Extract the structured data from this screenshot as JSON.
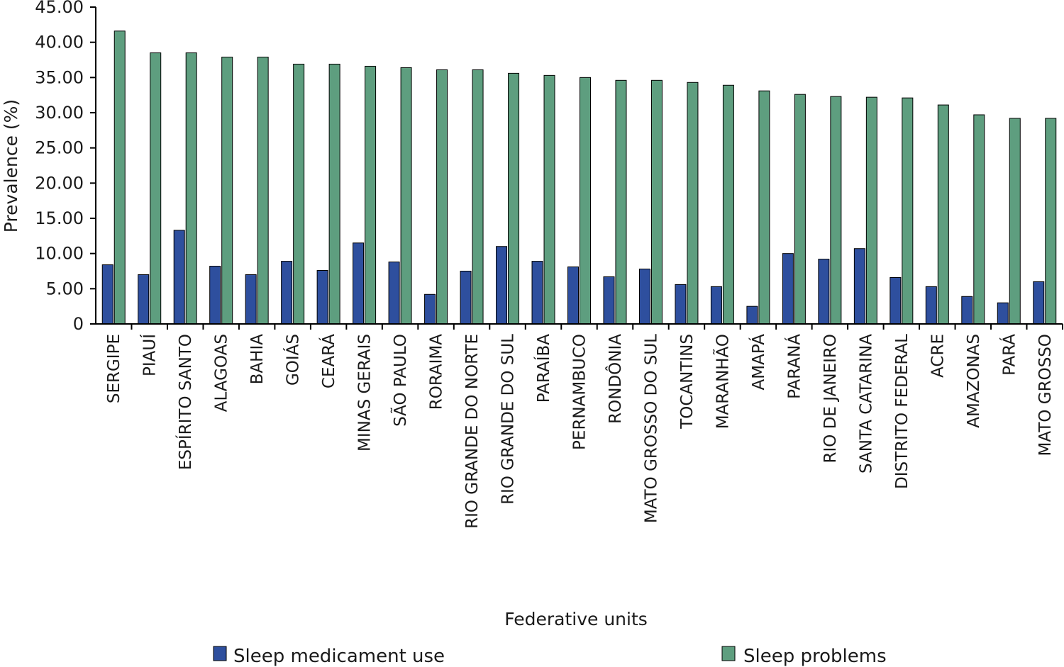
{
  "chart_data": {
    "type": "bar",
    "xlabel": "Federative units",
    "ylabel": "Prevalence (%)",
    "ylim": [
      0,
      45
    ],
    "yticks": [
      "0",
      "5.00",
      "10.00",
      "15.00",
      "20.00",
      "25.00",
      "30.00",
      "35.00",
      "40.00",
      "45.00"
    ],
    "grid": false,
    "legend_position": "bottom",
    "categories": [
      "SERGIPE",
      "PIAUÍ",
      "ESPÍRITO SANTO",
      "ALAGOAS",
      "BAHIA",
      "GOIÁS",
      "CEARÁ",
      "MINAS GERAIS",
      "SÃO PAULO",
      "RORAIMA",
      "RIO GRANDE DO NORTE",
      "RIO GRANDE DO SUL",
      "PARAÍBA",
      "PERNAMBUCO",
      "RONDÔNIA",
      "MATO GROSSO DO SUL",
      "TOCANTINS",
      "MARANHÃO",
      "AMAPÁ",
      "PARANÁ",
      "RIO DE JANEIRO",
      "SANTA CATARINA",
      "DISTRITO FEDERAL",
      "ACRE",
      "AMAZONAS",
      "PARÁ",
      "MATO GROSSO"
    ],
    "series": [
      {
        "name": "Sleep medicament use",
        "color": "#2e4f9e",
        "values": [
          8.4,
          7.0,
          13.3,
          8.2,
          7.0,
          8.9,
          7.6,
          11.5,
          8.8,
          4.2,
          7.5,
          11.0,
          8.9,
          8.1,
          6.7,
          7.8,
          5.6,
          5.3,
          2.5,
          10.0,
          9.2,
          10.7,
          6.6,
          5.3,
          3.9,
          3.0,
          6.0
        ]
      },
      {
        "name": "Sleep problems",
        "color": "#5e9e7f",
        "values": [
          41.6,
          38.5,
          38.5,
          37.9,
          37.9,
          36.9,
          36.9,
          36.6,
          36.4,
          36.1,
          36.1,
          35.6,
          35.3,
          35.0,
          34.6,
          34.6,
          34.3,
          33.9,
          33.1,
          32.6,
          32.3,
          32.2,
          32.1,
          31.1,
          29.7,
          29.2,
          29.2
        ]
      }
    ]
  }
}
